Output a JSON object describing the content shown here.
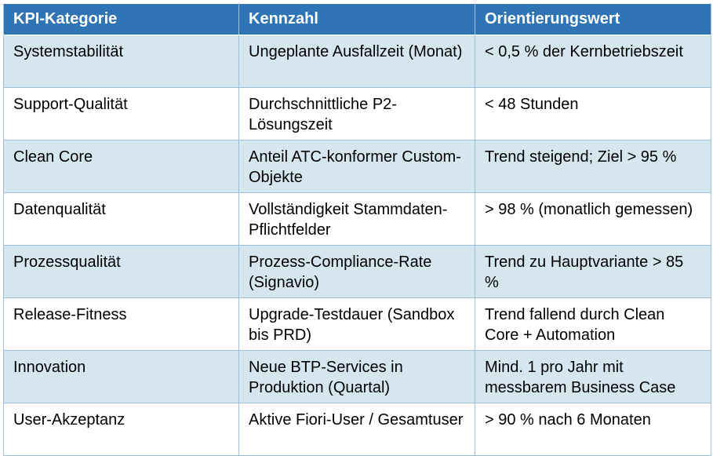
{
  "table": {
    "headers": [
      "KPI-Kategorie",
      "Kennzahl",
      "Orientierungswert"
    ],
    "rows": [
      [
        "Systemstabilität",
        "Ungeplante Ausfallzeit (Monat)",
        "< 0,5 % der Kernbetriebszeit"
      ],
      [
        "Support-Qualität",
        "Durchschnittliche P2-Lösungszeit",
        "< 48 Stunden"
      ],
      [
        "Clean Core",
        "Anteil ATC-konformer Custom-Objekte",
        "Trend steigend; Ziel > 95 %"
      ],
      [
        "Datenqualität",
        "Vollständigkeit Stammdaten-Pflichtfelder",
        "> 98 % (monatlich gemessen)"
      ],
      [
        "Prozessqualität",
        "Prozess-Compliance-Rate (Signavio)",
        "Trend zu Hauptvariante > 85 %"
      ],
      [
        "Release-Fitness",
        "Upgrade-Testdauer (Sandbox bis PRD)",
        "Trend fallend durch Clean Core + Automation"
      ],
      [
        "Innovation",
        "Neue BTP-Services in Produktion (Quartal)",
        "Mind. 1 pro Jahr mit messbarem Business Case"
      ],
      [
        "User-Akzeptanz",
        "Aktive Fiori-User / Gesamtuser",
        "> 90 % nach 6 Monaten"
      ]
    ]
  },
  "colors": {
    "header_bg": "#2F75B5",
    "header_text": "#FFFFFF",
    "shaded_row_bg": "#D5E6EF",
    "plain_row_bg": "#FFFFFF",
    "border": "#9DBFD7"
  }
}
